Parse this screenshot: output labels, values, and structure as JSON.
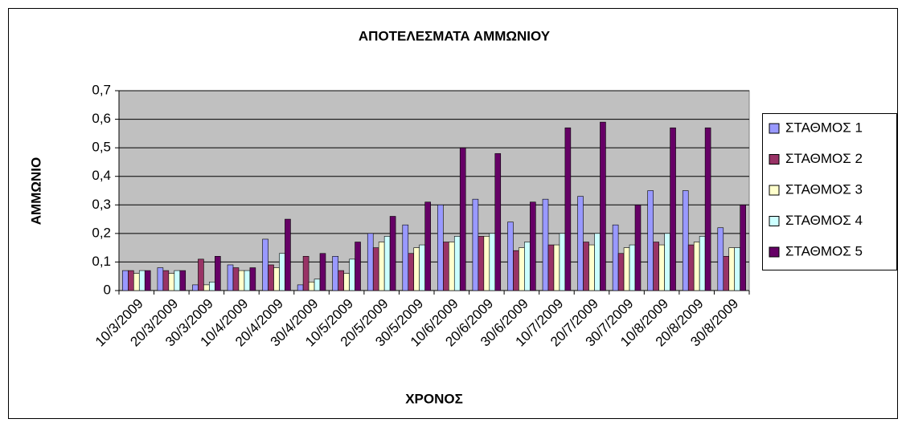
{
  "chart_data": {
    "type": "bar",
    "title": "ΑΠΟΤΕΛΕΣΜΑΤΑ ΑΜΜΩΝΙΟΥ",
    "xlabel": "ΧΡΟΝΟΣ",
    "ylabel": "ΑΜΜΩΝΙΟ",
    "categories": [
      "10/3/2009",
      "20/3/2009",
      "30/3/2009",
      "10/4/2009",
      "20/4/2009",
      "30/4/2009",
      "10/5/2009",
      "20/5/2009",
      "30/5/2009",
      "10/6/2009",
      "20/6/2009",
      "30/6/2009",
      "10/7/2009",
      "20/7/2009",
      "30/7/2009",
      "10/8/2009",
      "20/8/2009",
      "30/8/2009"
    ],
    "series": [
      {
        "name": "ΣΤΑΘΜΟΣ 1",
        "color": "#9999ff",
        "values": [
          0.07,
          0.08,
          0.02,
          0.09,
          0.18,
          0.02,
          0.12,
          0.2,
          0.23,
          0.3,
          0.32,
          0.24,
          0.32,
          0.33,
          0.23,
          0.35,
          0.35,
          0.22
        ]
      },
      {
        "name": "ΣΤΑΘΜΟΣ 2",
        "color": "#993366",
        "values": [
          0.07,
          0.07,
          0.11,
          0.08,
          0.09,
          0.12,
          0.07,
          0.15,
          0.13,
          0.17,
          0.19,
          0.14,
          0.16,
          0.17,
          0.13,
          0.17,
          0.16,
          0.12
        ]
      },
      {
        "name": "ΣΤΑΘΜΟΣ 3",
        "color": "#ffffcc",
        "values": [
          0.06,
          0.06,
          0.02,
          0.07,
          0.08,
          0.03,
          0.06,
          0.17,
          0.15,
          0.17,
          0.19,
          0.15,
          0.16,
          0.16,
          0.15,
          0.16,
          0.17,
          0.15
        ]
      },
      {
        "name": "ΣΤΑΘΜΟΣ 4",
        "color": "#ccffff",
        "values": [
          0.07,
          0.07,
          0.03,
          0.07,
          0.13,
          0.04,
          0.11,
          0.19,
          0.16,
          0.19,
          0.2,
          0.17,
          0.2,
          0.2,
          0.16,
          0.2,
          0.19,
          0.15
        ]
      },
      {
        "name": "ΣΤΑΘΜΟΣ 5",
        "color": "#660066",
        "values": [
          0.07,
          0.07,
          0.12,
          0.08,
          0.25,
          0.13,
          0.17,
          0.26,
          0.31,
          0.5,
          0.48,
          0.31,
          0.57,
          0.59,
          0.3,
          0.57,
          0.57,
          0.3
        ]
      }
    ],
    "ylim": [
      0,
      0.7
    ],
    "yticks": [
      0,
      {
        "value": 0.1,
        "label": "0,1"
      },
      {
        "value": 0.2,
        "label": "0,2"
      },
      {
        "value": 0.3,
        "label": "0,3"
      },
      {
        "value": 0.4,
        "label": "0,4"
      },
      {
        "value": 0.5,
        "label": "0,5"
      },
      {
        "value": 0.6,
        "label": "0,6"
      },
      {
        "value": 0.7,
        "label": "0,7"
      }
    ],
    "grid": true,
    "legend": "right",
    "plot_background": "#c0c0c0"
  }
}
